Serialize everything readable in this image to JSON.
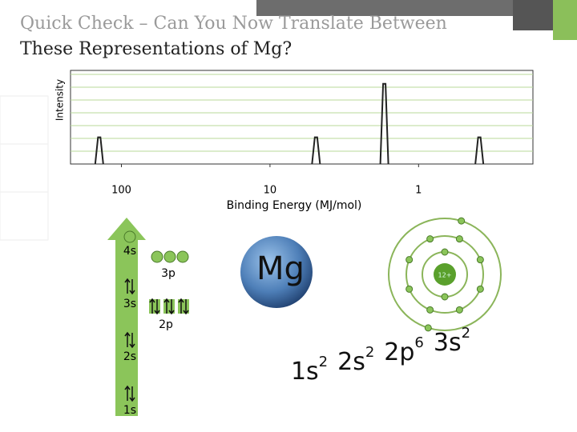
{
  "slide": {
    "title_line1": "Quick Check – Can You Now Translate Between",
    "title_line2": "These Representations of Mg?"
  },
  "chart_data": {
    "type": "spectrum",
    "x_label": "Binding Energy (MJ/mol)",
    "y_label": "Intensity",
    "x": [
      141,
      4.9,
      1.7,
      0.39
    ],
    "values": [
      2,
      2,
      6,
      2
    ],
    "color": "#222222",
    "xlim": [
      220,
      0.17
    ],
    "xticks": [
      100,
      10,
      1
    ],
    "x_log": true,
    "ylim": [
      0,
      7
    ]
  },
  "orbitals": {
    "4s": "4s",
    "3p": "3p",
    "3s": "3s",
    "2p": "2p",
    "2s": "2s",
    "1s": "1s"
  },
  "atom": {
    "symbol": "Mg",
    "nucleus": "12+"
  },
  "configuration": [
    {
      "base": "1s",
      "sup": "2"
    },
    {
      "base": "2s",
      "sup": "2"
    },
    {
      "base": "2p",
      "sup": "6"
    },
    {
      "base": "3s",
      "sup": "2"
    }
  ]
}
